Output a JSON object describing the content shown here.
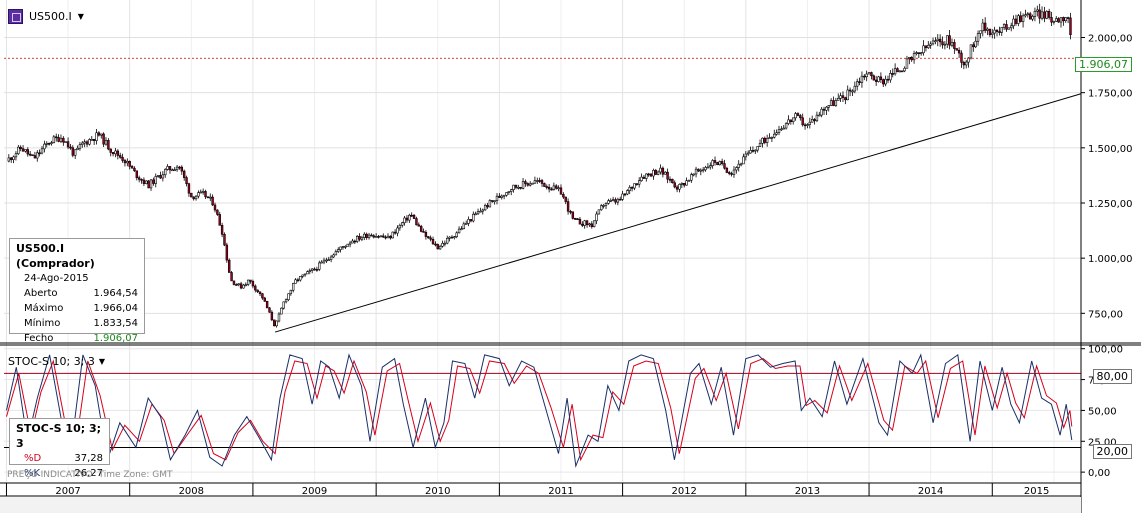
{
  "symbol": {
    "name": "US500.I",
    "icon": "cfd-icon"
  },
  "info_box": {
    "title": "US500.I (Comprador)",
    "date": "24-Ago-2015",
    "rows": [
      {
        "label": "Aberto",
        "value": "1.964,54"
      },
      {
        "label": "Máximo",
        "value": "1.966,04"
      },
      {
        "label": "Mínimo",
        "value": "1.833,54"
      },
      {
        "label": "Fecho",
        "value": "1.906,07"
      }
    ]
  },
  "stoch": {
    "title": "STOC-S 10; 3; 3",
    "box_title": "STOC-S 10; 3; 3",
    "d_label": "%D",
    "d_value": "37,28",
    "k_label": "%K",
    "k_value": "26,27"
  },
  "footnote": {
    "price_type": "PREÇO INDICATIVO",
    "timezone": "Time Zone: GMT"
  },
  "price_tag": "1.906,07",
  "level_tags": {
    "upper": "80,00",
    "lower": "20,00"
  },
  "colors": {
    "up": "#ffffff",
    "down": "#a0001e",
    "d_line": "#d6001c",
    "k_line": "#1a2f66",
    "price_line": "#cc0000",
    "positive": "#1c8a1c"
  },
  "chart_data": [
    {
      "type": "candlestick",
      "title": "US500.I",
      "timeframe": "weekly",
      "y_ticks": [
        750,
        1000,
        1250,
        1500,
        1750,
        2000
      ],
      "y_tick_labels": [
        "750,00",
        "1.000,00",
        "1.250,00",
        "1.500,00",
        "1.750,00",
        "2.000,00"
      ],
      "ylim": [
        620,
        2170
      ],
      "x_labels": [
        "2007",
        "2008",
        "2009",
        "2010",
        "2011",
        "2012",
        "2013",
        "2014",
        "2015"
      ],
      "xlim": [
        2006.98,
        2015.72
      ],
      "last_close": 1906.07,
      "path": [
        [
          2007.0,
          1440
        ],
        [
          2007.12,
          1500
        ],
        [
          2007.22,
          1450
        ],
        [
          2007.35,
          1530
        ],
        [
          2007.45,
          1550
        ],
        [
          2007.55,
          1470
        ],
        [
          2007.62,
          1520
        ],
        [
          2007.75,
          1560
        ],
        [
          2007.85,
          1490
        ],
        [
          2007.95,
          1450
        ],
        [
          2008.05,
          1380
        ],
        [
          2008.15,
          1330
        ],
        [
          2008.3,
          1400
        ],
        [
          2008.4,
          1420
        ],
        [
          2008.5,
          1280
        ],
        [
          2008.6,
          1290
        ],
        [
          2008.68,
          1250
        ],
        [
          2008.75,
          1120
        ],
        [
          2008.82,
          900
        ],
        [
          2008.9,
          870
        ],
        [
          2008.97,
          900
        ],
        [
          2009.08,
          820
        ],
        [
          2009.18,
          690
        ],
        [
          2009.25,
          800
        ],
        [
          2009.35,
          900
        ],
        [
          2009.5,
          950
        ],
        [
          2009.65,
          1020
        ],
        [
          2009.8,
          1080
        ],
        [
          2009.95,
          1110
        ],
        [
          2010.1,
          1090
        ],
        [
          2010.28,
          1200
        ],
        [
          2010.38,
          1110
        ],
        [
          2010.5,
          1050
        ],
        [
          2010.62,
          1100
        ],
        [
          2010.75,
          1170
        ],
        [
          2010.9,
          1240
        ],
        [
          2011.1,
          1320
        ],
        [
          2011.3,
          1350
        ],
        [
          2011.5,
          1300
        ],
        [
          2011.6,
          1170
        ],
        [
          2011.75,
          1150
        ],
        [
          2011.85,
          1250
        ],
        [
          2011.97,
          1260
        ],
        [
          2012.15,
          1370
        ],
        [
          2012.3,
          1400
        ],
        [
          2012.45,
          1320
        ],
        [
          2012.6,
          1390
        ],
        [
          2012.75,
          1440
        ],
        [
          2012.88,
          1390
        ],
        [
          2013.0,
          1460
        ],
        [
          2013.2,
          1560
        ],
        [
          2013.4,
          1640
        ],
        [
          2013.5,
          1600
        ],
        [
          2013.65,
          1690
        ],
        [
          2013.8,
          1730
        ],
        [
          2013.97,
          1840
        ],
        [
          2014.1,
          1800
        ],
        [
          2014.3,
          1880
        ],
        [
          2014.5,
          1970
        ],
        [
          2014.65,
          1990
        ],
        [
          2014.78,
          1880
        ],
        [
          2014.9,
          2050
        ],
        [
          2015.05,
          2020
        ],
        [
          2015.2,
          2090
        ],
        [
          2015.4,
          2110
        ],
        [
          2015.5,
          2080
        ],
        [
          2015.6,
          2100
        ],
        [
          2015.63,
          2070
        ],
        [
          2015.645,
          1906
        ]
      ],
      "trendline": {
        "from": [
          2009.18,
          665
        ],
        "to": [
          2015.72,
          1745
        ]
      },
      "horizontal_line": 1906.07
    },
    {
      "type": "line",
      "title": "STOC-S 10; 3; 3",
      "y_ticks": [
        0,
        25,
        50,
        75,
        100
      ],
      "y_tick_labels": [
        "0,00",
        "25,00",
        "50,00",
        "75,00",
        "100,00"
      ],
      "ylim": [
        -8,
        103
      ],
      "levels": [
        80,
        20
      ],
      "series": [
        {
          "name": "%D",
          "last": 37.28
        },
        {
          "name": "%K",
          "last": 26.27
        }
      ],
      "k_path": [
        [
          2007.0,
          50
        ],
        [
          2007.08,
          85
        ],
        [
          2007.17,
          25
        ],
        [
          2007.25,
          60
        ],
        [
          2007.35,
          95
        ],
        [
          2007.45,
          40
        ],
        [
          2007.52,
          15
        ],
        [
          2007.62,
          95
        ],
        [
          2007.72,
          70
        ],
        [
          2007.82,
          10
        ],
        [
          2007.92,
          40
        ],
        [
          2008.05,
          20
        ],
        [
          2008.15,
          60
        ],
        [
          2008.25,
          45
        ],
        [
          2008.33,
          10
        ],
        [
          2008.45,
          30
        ],
        [
          2008.55,
          50
        ],
        [
          2008.65,
          12
        ],
        [
          2008.75,
          5
        ],
        [
          2008.85,
          30
        ],
        [
          2008.95,
          45
        ],
        [
          2009.05,
          28
        ],
        [
          2009.15,
          10
        ],
        [
          2009.22,
          60
        ],
        [
          2009.3,
          95
        ],
        [
          2009.4,
          92
        ],
        [
          2009.48,
          55
        ],
        [
          2009.55,
          90
        ],
        [
          2009.62,
          85
        ],
        [
          2009.7,
          60
        ],
        [
          2009.78,
          95
        ],
        [
          2009.88,
          70
        ],
        [
          2009.95,
          25
        ],
        [
          2010.05,
          85
        ],
        [
          2010.15,
          92
        ],
        [
          2010.22,
          55
        ],
        [
          2010.3,
          20
        ],
        [
          2010.4,
          60
        ],
        [
          2010.48,
          20
        ],
        [
          2010.55,
          40
        ],
        [
          2010.62,
          90
        ],
        [
          2010.72,
          88
        ],
        [
          2010.8,
          60
        ],
        [
          2010.88,
          95
        ],
        [
          2011.0,
          92
        ],
        [
          2011.08,
          70
        ],
        [
          2011.18,
          90
        ],
        [
          2011.28,
          85
        ],
        [
          2011.38,
          50
        ],
        [
          2011.48,
          15
        ],
        [
          2011.55,
          60
        ],
        [
          2011.62,
          5
        ],
        [
          2011.72,
          30
        ],
        [
          2011.8,
          25
        ],
        [
          2011.88,
          70
        ],
        [
          2011.97,
          50
        ],
        [
          2012.05,
          90
        ],
        [
          2012.15,
          95
        ],
        [
          2012.25,
          92
        ],
        [
          2012.35,
          50
        ],
        [
          2012.42,
          10
        ],
        [
          2012.55,
          80
        ],
        [
          2012.62,
          88
        ],
        [
          2012.72,
          55
        ],
        [
          2012.8,
          85
        ],
        [
          2012.9,
          30
        ],
        [
          2013.0,
          92
        ],
        [
          2013.1,
          95
        ],
        [
          2013.2,
          85
        ],
        [
          2013.3,
          88
        ],
        [
          2013.4,
          90
        ],
        [
          2013.45,
          50
        ],
        [
          2013.52,
          60
        ],
        [
          2013.62,
          45
        ],
        [
          2013.72,
          90
        ],
        [
          2013.82,
          55
        ],
        [
          2013.95,
          92
        ],
        [
          2014.08,
          40
        ],
        [
          2014.15,
          30
        ],
        [
          2014.25,
          90
        ],
        [
          2014.35,
          80
        ],
        [
          2014.42,
          95
        ],
        [
          2014.52,
          40
        ],
        [
          2014.62,
          88
        ],
        [
          2014.72,
          95
        ],
        [
          2014.82,
          25
        ],
        [
          2014.9,
          90
        ],
        [
          2015.0,
          50
        ],
        [
          2015.08,
          85
        ],
        [
          2015.15,
          55
        ],
        [
          2015.22,
          40
        ],
        [
          2015.32,
          90
        ],
        [
          2015.4,
          60
        ],
        [
          2015.48,
          55
        ],
        [
          2015.55,
          30
        ],
        [
          2015.6,
          55
        ],
        [
          2015.645,
          26
        ]
      ],
      "d_path": [
        [
          2007.0,
          45
        ],
        [
          2007.1,
          80
        ],
        [
          2007.2,
          30
        ],
        [
          2007.28,
          65
        ],
        [
          2007.38,
          90
        ],
        [
          2007.48,
          38
        ],
        [
          2007.56,
          20
        ],
        [
          2007.66,
          90
        ],
        [
          2007.76,
          62
        ],
        [
          2007.86,
          18
        ],
        [
          2007.96,
          38
        ],
        [
          2008.08,
          25
        ],
        [
          2008.18,
          55
        ],
        [
          2008.28,
          42
        ],
        [
          2008.36,
          15
        ],
        [
          2008.48,
          32
        ],
        [
          2008.58,
          46
        ],
        [
          2008.68,
          15
        ],
        [
          2008.78,
          10
        ],
        [
          2008.88,
          32
        ],
        [
          2008.98,
          42
        ],
        [
          2009.08,
          25
        ],
        [
          2009.18,
          15
        ],
        [
          2009.26,
          65
        ],
        [
          2009.34,
          90
        ],
        [
          2009.44,
          88
        ],
        [
          2009.52,
          60
        ],
        [
          2009.59,
          86
        ],
        [
          2009.66,
          82
        ],
        [
          2009.74,
          64
        ],
        [
          2009.82,
          90
        ],
        [
          2009.92,
          65
        ],
        [
          2009.99,
          30
        ],
        [
          2010.09,
          82
        ],
        [
          2010.19,
          88
        ],
        [
          2010.26,
          58
        ],
        [
          2010.34,
          25
        ],
        [
          2010.44,
          56
        ],
        [
          2010.52,
          25
        ],
        [
          2010.59,
          42
        ],
        [
          2010.66,
          86
        ],
        [
          2010.76,
          84
        ],
        [
          2010.84,
          64
        ],
        [
          2010.92,
          90
        ],
        [
          2011.04,
          88
        ],
        [
          2011.12,
          72
        ],
        [
          2011.22,
          86
        ],
        [
          2011.32,
          80
        ],
        [
          2011.42,
          52
        ],
        [
          2011.52,
          20
        ],
        [
          2011.59,
          55
        ],
        [
          2011.66,
          10
        ],
        [
          2011.76,
          30
        ],
        [
          2011.84,
          28
        ],
        [
          2011.92,
          65
        ],
        [
          2012.01,
          55
        ],
        [
          2012.09,
          86
        ],
        [
          2012.19,
          90
        ],
        [
          2012.29,
          88
        ],
        [
          2012.39,
          52
        ],
        [
          2012.46,
          15
        ],
        [
          2012.59,
          76
        ],
        [
          2012.66,
          84
        ],
        [
          2012.76,
          58
        ],
        [
          2012.84,
          80
        ],
        [
          2012.94,
          35
        ],
        [
          2013.04,
          88
        ],
        [
          2013.14,
          92
        ],
        [
          2013.24,
          84
        ],
        [
          2013.34,
          86
        ],
        [
          2013.44,
          86
        ],
        [
          2013.49,
          54
        ],
        [
          2013.56,
          58
        ],
        [
          2013.66,
          48
        ],
        [
          2013.76,
          86
        ],
        [
          2013.86,
          58
        ],
        [
          2013.99,
          88
        ],
        [
          2014.12,
          42
        ],
        [
          2014.19,
          34
        ],
        [
          2014.29,
          86
        ],
        [
          2014.39,
          80
        ],
        [
          2014.46,
          90
        ],
        [
          2014.56,
          44
        ],
        [
          2014.66,
          84
        ],
        [
          2014.76,
          90
        ],
        [
          2014.86,
          30
        ],
        [
          2014.94,
          86
        ],
        [
          2015.04,
          52
        ],
        [
          2015.12,
          80
        ],
        [
          2015.19,
          56
        ],
        [
          2015.26,
          44
        ],
        [
          2015.36,
          86
        ],
        [
          2015.44,
          62
        ],
        [
          2015.52,
          56
        ],
        [
          2015.58,
          36
        ],
        [
          2015.63,
          50
        ],
        [
          2015.645,
          37
        ]
      ]
    }
  ]
}
